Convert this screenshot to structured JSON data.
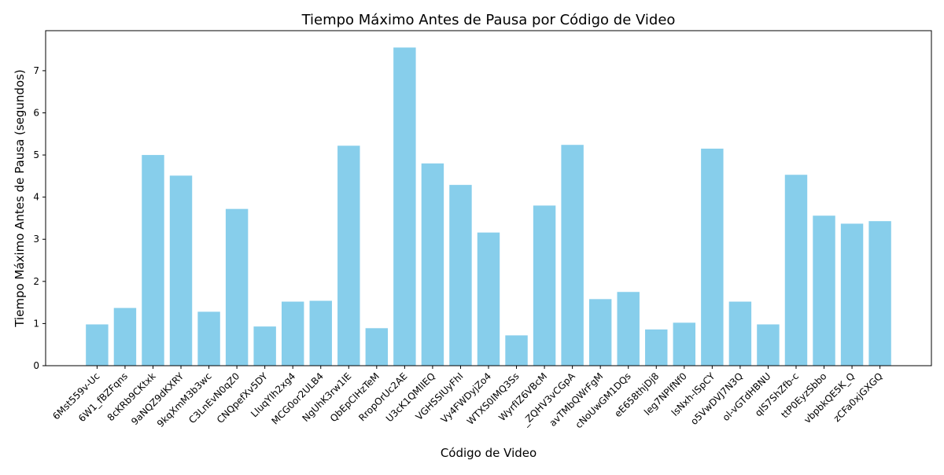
{
  "chart_data": {
    "type": "bar",
    "title": "Tiempo Máximo Antes de Pausa por Código de Video",
    "xlabel": "Código de Video",
    "ylabel": "Tiempo Máximo Antes de Pausa (segundos)",
    "ylim": [
      0,
      7.95
    ],
    "yticks": [
      "0",
      "1",
      "2",
      "3",
      "4",
      "5",
      "6",
      "7"
    ],
    "grid": false,
    "bar_color": "#87CEEB",
    "categories": [
      "6Mst559v-Uc",
      "6W1_fBZFqns",
      "8cKRb9CKtxk",
      "9aNQZ9dKXRY",
      "9kqXmM3b3wc",
      "C3LnEvN0qZ0",
      "CNQpefXv5DY",
      "LIuqYIh2xg4",
      "MCG0or2ULB4",
      "NgUhK3rw1IE",
      "QbEpClHzTeM",
      "RropOrUc2AE",
      "U3cK1QMIIEQ",
      "VGHSSIUyFhI",
      "Vy4FWDyjZo4",
      "WTXS0IMQ3Ss",
      "WyrfIZ6VBcM",
      "_ZQHV3vCGpA",
      "avTMbQWrFgM",
      "cNoUwGM1DQs",
      "eE658thjDj8",
      "leg7NPlfNf0",
      "lsNxh-lSpCY",
      "o5VwDVJ7N3Q",
      "ol-vGTdHBNU",
      "qlS7ShZfb-c",
      "ttP0EyzSbbo",
      "vbpbkQE5K_Q",
      "zCFa0xjGXGQ"
    ],
    "values": [
      0.98,
      1.37,
      5.0,
      4.51,
      1.28,
      3.72,
      0.93,
      1.52,
      1.54,
      5.22,
      0.89,
      7.55,
      4.8,
      4.29,
      3.16,
      0.72,
      3.8,
      5.24,
      1.58,
      1.75,
      0.86,
      1.02,
      5.15,
      1.52,
      0.98,
      4.53,
      3.56,
      3.37,
      3.43
    ]
  }
}
